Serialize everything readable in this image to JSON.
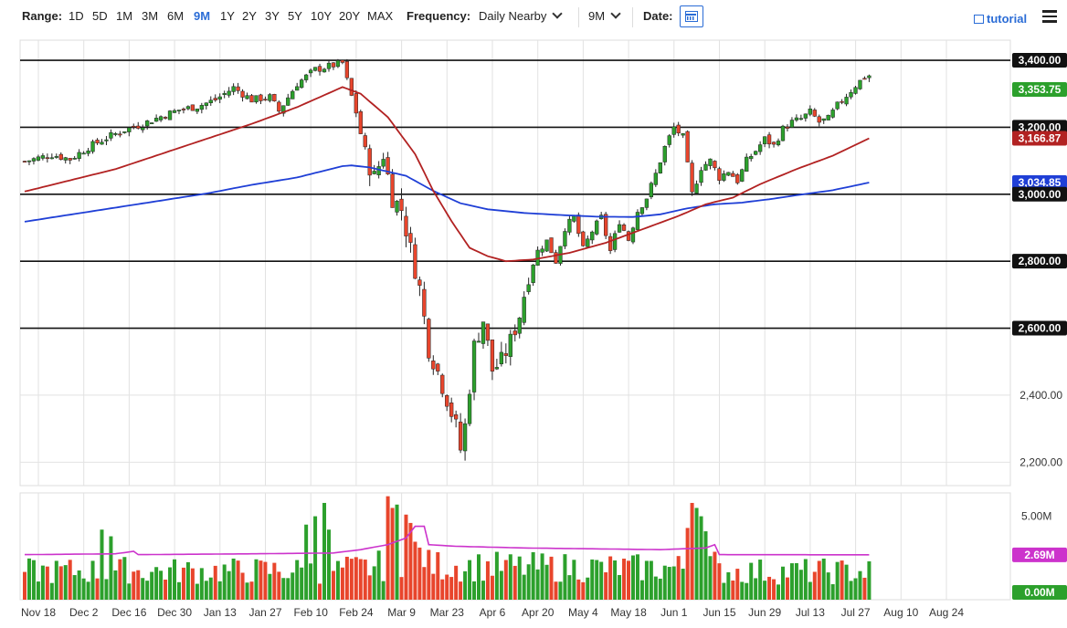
{
  "toolbar": {
    "range_label": "Range:",
    "ranges": [
      "1D",
      "5D",
      "1M",
      "3M",
      "6M",
      "9M",
      "1Y",
      "2Y",
      "3Y",
      "5Y",
      "10Y",
      "20Y",
      "MAX"
    ],
    "active_range": "9M",
    "frequency_label": "Frequency:",
    "frequency_value": "Daily Nearby",
    "period_value": "9M",
    "date_label": "Date:",
    "tutorial_label": "tutorial"
  },
  "colors": {
    "up": "#2ca02c",
    "down": "#e8452c",
    "ma50": "#b22222",
    "ma200": "#1f3fd6",
    "volume_avg": "#cc33cc",
    "accent": "#2a6cd6"
  },
  "chart_data": {
    "type": "candlestick",
    "price_axis": {
      "ylim": [
        2130,
        3460
      ],
      "ticks": [
        2200,
        2400,
        2600,
        2800,
        3000,
        3200,
        3400
      ],
      "tick_labels": [
        "2,200.00",
        "2,400.00",
        "2,600.00",
        "2,800.00",
        "3,000.00",
        "3,200.00",
        "3,400.00"
      ],
      "grid": true
    },
    "horizontal_lines": [
      3400,
      3200,
      3000,
      2800,
      2600
    ],
    "price_labels": [
      {
        "label": "3,400.00",
        "value": 3400,
        "style": "dark"
      },
      {
        "label": "3,353.75",
        "value": 3353.75,
        "style": "up"
      },
      {
        "label": "3,200.00",
        "value": 3200,
        "style": "dark"
      },
      {
        "label": "3,166.87",
        "value": 3166.87,
        "style": "ma50"
      },
      {
        "label": "3,034.85",
        "value": 3034.85,
        "style": "ma200"
      },
      {
        "label": "3,000.00",
        "value": 3000,
        "style": "dark"
      },
      {
        "label": "2,800.00",
        "value": 2800,
        "style": "dark"
      },
      {
        "label": "2,600.00",
        "value": 2600,
        "style": "dark"
      }
    ],
    "last_price": 3353.75,
    "x_axis": {
      "tick_labels": [
        "Nov 18",
        "Dec 2",
        "Dec 16",
        "Dec 30",
        "Jan 13",
        "Jan 27",
        "Feb 10",
        "Feb 24",
        "Mar 9",
        "Mar 23",
        "Apr 6",
        "Apr 20",
        "May 4",
        "May 18",
        "Jun 1",
        "Jun 15",
        "Jun 29",
        "Jul 13",
        "Jul 27",
        "Aug 10",
        "Aug 24"
      ],
      "tick_index": [
        0,
        10,
        20,
        30,
        40,
        50,
        60,
        70,
        80,
        90,
        100,
        110,
        120,
        130,
        140,
        150,
        160,
        170,
        180,
        190,
        200
      ]
    },
    "price_path": [
      [
        0,
        3098
      ],
      [
        6,
        3118
      ],
      [
        10,
        3105
      ],
      [
        14,
        3140
      ],
      [
        18,
        3168
      ],
      [
        22,
        3192
      ],
      [
        26,
        3210
      ],
      [
        30,
        3232
      ],
      [
        34,
        3252
      ],
      [
        38,
        3262
      ],
      [
        42,
        3282
      ],
      [
        46,
        3318
      ],
      [
        50,
        3282
      ],
      [
        54,
        3290
      ],
      [
        56,
        3248
      ],
      [
        60,
        3330
      ],
      [
        64,
        3372
      ],
      [
        68,
        3385
      ],
      [
        70,
        3392
      ],
      [
        71,
        3340
      ],
      [
        73,
        3245
      ],
      [
        75,
        3118
      ],
      [
        77,
        3050
      ],
      [
        79,
        3120
      ],
      [
        81,
        2990
      ],
      [
        83,
        2955
      ],
      [
        85,
        2835
      ],
      [
        87,
        2720
      ],
      [
        89,
        2540
      ],
      [
        91,
        2470
      ],
      [
        93,
        2390
      ],
      [
        95,
        2305
      ],
      [
        96,
        2238
      ],
      [
        97,
        2308
      ],
      [
        99,
        2545
      ],
      [
        101,
        2625
      ],
      [
        103,
        2475
      ],
      [
        105,
        2500
      ],
      [
        107,
        2560
      ],
      [
        109,
        2640
      ],
      [
        111,
        2760
      ],
      [
        113,
        2830
      ],
      [
        115,
        2860
      ],
      [
        117,
        2800
      ],
      [
        119,
        2900
      ],
      [
        121,
        2930
      ],
      [
        123,
        2835
      ],
      [
        125,
        2890
      ],
      [
        127,
        2930
      ],
      [
        129,
        2830
      ],
      [
        131,
        2920
      ],
      [
        133,
        2865
      ],
      [
        135,
        2950
      ],
      [
        137,
        2990
      ],
      [
        139,
        3060
      ],
      [
        141,
        3140
      ],
      [
        143,
        3200
      ],
      [
        145,
        3170
      ],
      [
        147,
        3000
      ],
      [
        149,
        3080
      ],
      [
        151,
        3100
      ],
      [
        153,
        3050
      ],
      [
        155,
        3070
      ],
      [
        157,
        3040
      ],
      [
        159,
        3100
      ],
      [
        161,
        3130
      ],
      [
        163,
        3165
      ],
      [
        165,
        3145
      ],
      [
        167,
        3195
      ],
      [
        169,
        3215
      ],
      [
        171,
        3225
      ],
      [
        173,
        3245
      ],
      [
        175,
        3215
      ],
      [
        177,
        3225
      ],
      [
        179,
        3265
      ],
      [
        181,
        3295
      ],
      [
        183,
        3325
      ],
      [
        185,
        3350
      ],
      [
        186,
        3353.75
      ]
    ],
    "ma50": [
      [
        0,
        3008
      ],
      [
        20,
        3075
      ],
      [
        40,
        3165
      ],
      [
        50,
        3210
      ],
      [
        60,
        3260
      ],
      [
        70,
        3320
      ],
      [
        74,
        3300
      ],
      [
        80,
        3230
      ],
      [
        86,
        3120
      ],
      [
        90,
        3010
      ],
      [
        94,
        2920
      ],
      [
        98,
        2840
      ],
      [
        102,
        2815
      ],
      [
        106,
        2800
      ],
      [
        112,
        2805
      ],
      [
        120,
        2825
      ],
      [
        128,
        2855
      ],
      [
        136,
        2895
      ],
      [
        144,
        2935
      ],
      [
        150,
        2970
      ],
      [
        156,
        2990
      ],
      [
        162,
        3030
      ],
      [
        170,
        3075
      ],
      [
        178,
        3115
      ],
      [
        186,
        3166.87
      ]
    ],
    "ma200": [
      [
        0,
        2918
      ],
      [
        20,
        2960
      ],
      [
        40,
        3002
      ],
      [
        50,
        3028
      ],
      [
        60,
        3050
      ],
      [
        70,
        3084
      ],
      [
        72,
        3086
      ],
      [
        76,
        3080
      ],
      [
        84,
        3055
      ],
      [
        90,
        3010
      ],
      [
        96,
        2973
      ],
      [
        102,
        2955
      ],
      [
        110,
        2944
      ],
      [
        118,
        2938
      ],
      [
        126,
        2933
      ],
      [
        134,
        2932
      ],
      [
        140,
        2940
      ],
      [
        146,
        2958
      ],
      [
        152,
        2970
      ],
      [
        158,
        2975
      ],
      [
        164,
        2985
      ],
      [
        170,
        2997
      ],
      [
        178,
        3012
      ],
      [
        186,
        3034.85
      ]
    ],
    "volume_axis": {
      "ylim": [
        0,
        6.4
      ],
      "tick_labels": [
        "0.00M",
        "5.00M"
      ],
      "ticks": [
        0,
        5
      ],
      "unit": "M"
    },
    "volume_labels": [
      {
        "label": "2.69M",
        "value": 2.69,
        "style": "volume_avg"
      },
      {
        "label": "0.00M",
        "value": 0,
        "style": "up"
      }
    ],
    "volume_avg": [
      [
        0,
        2.7
      ],
      [
        20,
        2.75
      ],
      [
        24,
        2.9
      ],
      [
        25,
        2.7
      ],
      [
        50,
        2.75
      ],
      [
        68,
        2.8
      ],
      [
        74,
        3.0
      ],
      [
        80,
        3.3
      ],
      [
        84,
        3.7
      ],
      [
        86,
        4.4
      ],
      [
        88,
        4.4
      ],
      [
        89,
        3.3
      ],
      [
        95,
        3.2
      ],
      [
        110,
        3.1
      ],
      [
        140,
        3.0
      ],
      [
        150,
        3.1
      ],
      [
        152,
        3.3
      ],
      [
        153,
        2.7
      ],
      [
        186,
        2.69
      ]
    ],
    "volume_spikes": [
      [
        17,
        4.2
      ],
      [
        19,
        3.8
      ],
      [
        62,
        4.5
      ],
      [
        64,
        5.0
      ],
      [
        66,
        5.8
      ],
      [
        67,
        4.2
      ],
      [
        80,
        6.2
      ],
      [
        81,
        5.5
      ],
      [
        82,
        5.7
      ],
      [
        84,
        5.1
      ],
      [
        85,
        4.6
      ],
      [
        146,
        4.3
      ],
      [
        147,
        5.8
      ],
      [
        148,
        5.5
      ],
      [
        149,
        5.0
      ],
      [
        150,
        4.1
      ]
    ]
  }
}
